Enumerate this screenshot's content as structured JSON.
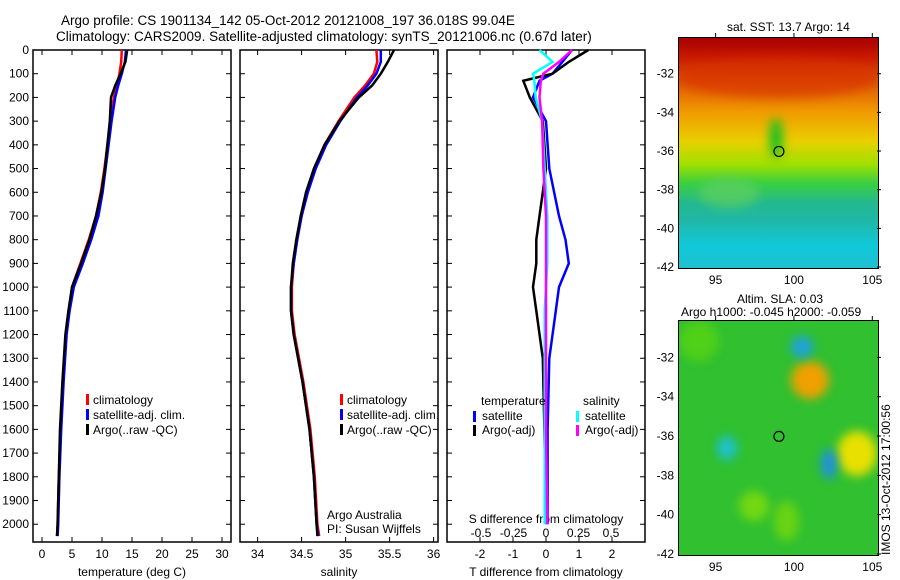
{
  "title_line1": "Argo profile: CS 1901134_142 05-Oct-2012 20121008_197 36.018S 99.04E",
  "title_line2": "Climatology: CARS2009. Satellite-adjusted climatology: synTS_20121006.nc (0.67d later)",
  "colors": {
    "clim": "#ff0000",
    "sat": "#0000ff",
    "argo": "#000000",
    "sal_sat": "#00ffff",
    "sal_argo": "#ff00ff"
  },
  "chart_data": [
    {
      "type": "line",
      "name": "temperature",
      "xlabel": "temperature (deg C)",
      "xlim": [
        -1.5,
        31.5
      ],
      "ylim": [
        2075,
        0
      ],
      "xticks": [
        "0",
        "5",
        "10",
        "15",
        "20",
        "25",
        "30"
      ],
      "xtick_values": [
        0,
        5,
        10,
        15,
        20,
        25,
        30
      ],
      "yticks": [
        "0",
        "100",
        "200",
        "300",
        "400",
        "500",
        "600",
        "700",
        "800",
        "900",
        "1000",
        "1100",
        "1200",
        "1300",
        "1400",
        "1500",
        "1600",
        "1700",
        "1800",
        "1900",
        "2000"
      ],
      "depth": [
        0,
        50,
        100,
        150,
        200,
        300,
        400,
        500,
        600,
        700,
        800,
        900,
        1000,
        1100,
        1200,
        1400,
        1600,
        1800,
        2000,
        2050
      ],
      "legend": [
        "climatology",
        "satellite-adj. clim.",
        "Argo(..raw -QC)"
      ],
      "series": [
        {
          "name": "climatology",
          "color": "#ff0000",
          "values": [
            13.3,
            13.2,
            12.9,
            12.5,
            12.0,
            11.4,
            10.9,
            10.4,
            9.8,
            9.0,
            7.8,
            6.4,
            5.0,
            4.5,
            4.0,
            3.5,
            3.1,
            2.8,
            2.6,
            2.5
          ]
        },
        {
          "name": "satellite-adj. clim.",
          "color": "#0000ff",
          "values": [
            14.0,
            13.8,
            13.3,
            12.7,
            12.2,
            11.6,
            11.1,
            10.6,
            10.1,
            9.4,
            8.2,
            6.8,
            5.3,
            4.6,
            4.1,
            3.6,
            3.2,
            2.9,
            2.7,
            2.6
          ]
        },
        {
          "name": "Argo(..raw -QC)",
          "color": "#000000",
          "values": [
            14.2,
            13.9,
            13.1,
            12.2,
            11.5,
            11.3,
            10.9,
            10.5,
            9.9,
            9.0,
            7.9,
            6.5,
            5.0,
            4.4,
            3.9,
            3.4,
            3.0,
            2.8,
            2.6,
            2.5
          ]
        }
      ]
    },
    {
      "type": "line",
      "name": "salinity",
      "xlabel": "salinity",
      "xlim": [
        33.8,
        36.05
      ],
      "ylim": [
        2075,
        0
      ],
      "xticks": [
        "34",
        "34.5",
        "35",
        "35.5",
        "36"
      ],
      "xtick_values": [
        34,
        34.5,
        35,
        35.5,
        36
      ],
      "depth": [
        0,
        50,
        100,
        150,
        200,
        300,
        400,
        500,
        600,
        700,
        800,
        900,
        1000,
        1100,
        1200,
        1300,
        1400,
        1600,
        1800,
        2000,
        2050
      ],
      "legend": [
        "climatology",
        "satellite-adj. clim.",
        "Argo(..raw -QC)"
      ],
      "annotation": [
        "Argo Australia",
        "PI: Susan Wijffels"
      ],
      "series": [
        {
          "name": "climatology",
          "color": "#ff0000",
          "values": [
            35.35,
            35.36,
            35.32,
            35.22,
            35.1,
            34.92,
            34.76,
            34.65,
            34.56,
            34.5,
            34.45,
            34.41,
            34.39,
            34.39,
            34.42,
            34.47,
            34.52,
            34.6,
            34.65,
            34.68,
            34.7
          ]
        },
        {
          "name": "satellite-adj. clim.",
          "color": "#0000ff",
          "values": [
            35.4,
            35.4,
            35.35,
            35.25,
            35.13,
            34.94,
            34.78,
            34.66,
            34.57,
            34.5,
            34.45,
            34.41,
            34.38,
            34.38,
            34.41,
            34.46,
            34.51,
            34.59,
            34.64,
            34.67,
            34.69
          ]
        },
        {
          "name": "Argo(..raw -QC)",
          "color": "#000000",
          "values": [
            35.55,
            35.48,
            35.4,
            35.3,
            35.15,
            34.93,
            34.76,
            34.64,
            34.55,
            34.49,
            34.44,
            34.4,
            34.38,
            34.38,
            34.41,
            34.46,
            34.51,
            34.59,
            34.64,
            34.67,
            34.68
          ]
        }
      ]
    },
    {
      "type": "line",
      "name": "difference",
      "xlabel": "T difference from climatology",
      "x2label": "S difference from climatology",
      "xlim": [
        -3,
        3
      ],
      "ylim": [
        2075,
        0
      ],
      "xticks": [
        "-2",
        "-1",
        "0",
        "1",
        "2"
      ],
      "xtick_values": [
        -2,
        -1,
        0,
        1,
        2
      ],
      "x2ticks": [
        "-0.5",
        "-0.25",
        "0",
        "0.25",
        "0.5"
      ],
      "x2tick_values": [
        -0.5,
        -0.25,
        0,
        0.25,
        0.5
      ],
      "depth": [
        0,
        50,
        100,
        130,
        200,
        300,
        500,
        700,
        800,
        900,
        1000,
        1100,
        1300,
        1600,
        2000
      ],
      "legend_headers": [
        "temperature",
        "salinity"
      ],
      "legend": [
        "satellite",
        "Argo(-adj)",
        "satellite",
        "Argo(-adj)"
      ],
      "series": [
        {
          "name": "T satellite",
          "color": "#0000ff",
          "scale": "T",
          "values": [
            0.8,
            0.5,
            0.2,
            -0.2,
            -0.4,
            0,
            0.1,
            0.4,
            0.6,
            0.7,
            0.4,
            0.3,
            0.1,
            0.05,
            0.05
          ]
        },
        {
          "name": "T Argo(-adj)",
          "color": "#000000",
          "scale": "T",
          "values": [
            1.3,
            0.7,
            0.2,
            -0.7,
            -0.5,
            -0.1,
            0,
            -0.2,
            -0.3,
            -0.3,
            -0.4,
            -0.3,
            -0.1,
            -0.05,
            0
          ]
        },
        {
          "name": "S satellite",
          "color": "#00ffff",
          "scale": "S",
          "values": [
            -0.05,
            0.05,
            -0.1,
            -0.09,
            -0.08,
            -0.03,
            -0.01,
            0.01,
            0.01,
            0.01,
            0,
            -0.01,
            -0.01,
            -0.01,
            -0.01
          ]
        },
        {
          "name": "S Argo(-adj)",
          "color": "#ff00ff",
          "scale": "S",
          "values": [
            0.2,
            0.1,
            -0.02,
            -0.04,
            -0.05,
            -0.03,
            -0.02,
            0,
            0,
            0,
            0,
            0,
            0,
            0,
            0.01
          ]
        }
      ]
    }
  ],
  "maps": {
    "sst_title": "sat. SST: 13.7 Argo: 14",
    "sla_title1": "Altim. SLA: 0.03",
    "sla_title2": "Argo h1000: -0.045 h2000: -0.059",
    "lat_ticks": [
      "-32",
      "-34",
      "-36",
      "-38",
      "-40",
      "-42"
    ],
    "lat_values": [
      -32,
      -34,
      -36,
      -38,
      -40,
      -42
    ],
    "lon_ticks": [
      "95",
      "100",
      "105"
    ],
    "lon_values": [
      95,
      100,
      105
    ],
    "float_position": {
      "lon": 99.04,
      "lat": -36.02
    },
    "stamp": "IMOS 13-Oct-2012 17:00:56"
  }
}
